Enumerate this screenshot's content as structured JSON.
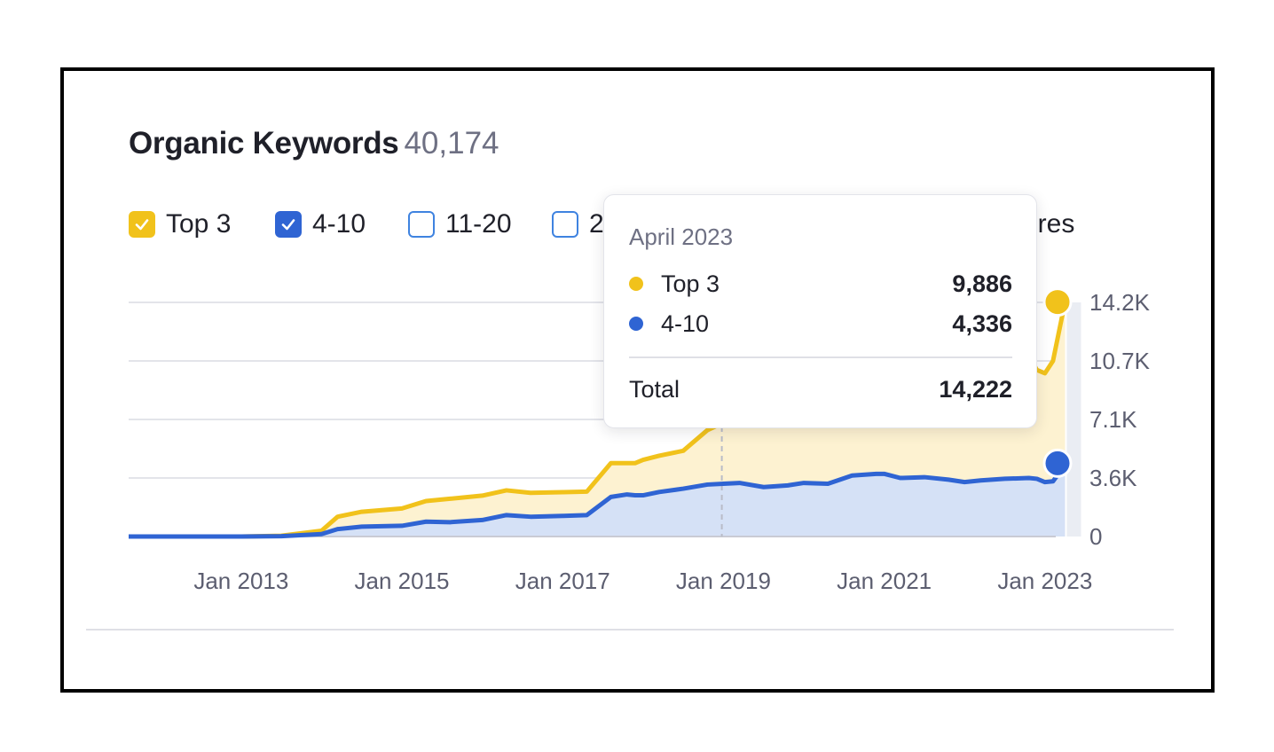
{
  "header": {
    "title": "Organic Keywords",
    "count": "40,174"
  },
  "legend": {
    "items": [
      {
        "label": "Top 3",
        "checked": true,
        "color": "#f1c21b"
      },
      {
        "label": "4-10",
        "checked": true,
        "color": "#2f64d3"
      },
      {
        "label": "11-20",
        "checked": false,
        "color": "#3f83e0"
      },
      {
        "label": "2",
        "checked": false,
        "color": "#3f83e0"
      }
    ],
    "overflow_text": "ures"
  },
  "tooltip": {
    "date": "April 2023",
    "rows": [
      {
        "label": "Top 3",
        "value": "9,886",
        "color": "#f1c21b"
      },
      {
        "label": "4-10",
        "value": "4,336",
        "color": "#2f64d3"
      }
    ],
    "total_label": "Total",
    "total_value": "14,222"
  },
  "chart_data": {
    "type": "area",
    "stacked": true,
    "x_tick_labels": [
      "Jan 2013",
      "Jan 2015",
      "Jan 2017",
      "Jan 2019",
      "Jan 2021",
      "Jan 2023"
    ],
    "y_tick_labels": [
      "0",
      "3.6K",
      "7.1K",
      "10.7K",
      "14.2K"
    ],
    "ylim": [
      0,
      14200
    ],
    "xlim": [
      2011.6,
      2023.3
    ],
    "grid": true,
    "legend_position": "top-left",
    "hover_x": 2018.98,
    "x": [
      2011.6,
      2012.5,
      2013.0,
      2013.5,
      2014.0,
      2014.2,
      2014.5,
      2015.0,
      2015.3,
      2015.6,
      2016.0,
      2016.3,
      2016.6,
      2017.0,
      2017.3,
      2017.6,
      2017.8,
      2017.9,
      2018.0,
      2018.2,
      2018.5,
      2018.8,
      2019.0,
      2019.2,
      2019.5,
      2019.8,
      2020.0,
      2020.3,
      2020.6,
      2020.9,
      2021.0,
      2021.2,
      2021.5,
      2021.8,
      2022.0,
      2022.2,
      2022.5,
      2022.8,
      2022.9,
      2023.0,
      2023.1,
      2023.25
    ],
    "series": [
      {
        "name": "4-10",
        "color": "#2f64d3",
        "values": [
          0,
          0,
          0,
          20,
          150,
          450,
          600,
          650,
          900,
          870,
          1000,
          1300,
          1200,
          1250,
          1300,
          2400,
          2550,
          2500,
          2500,
          2700,
          2900,
          3150,
          3200,
          3250,
          3000,
          3100,
          3250,
          3200,
          3700,
          3800,
          3800,
          3550,
          3600,
          3450,
          3300,
          3400,
          3500,
          3550,
          3500,
          3300,
          3350,
          4336
        ]
      },
      {
        "name": "Top 3",
        "color": "#f1c21b",
        "values": [
          0,
          0,
          0,
          30,
          200,
          750,
          900,
          1050,
          1250,
          1420,
          1480,
          1500,
          1450,
          1440,
          1420,
          2050,
          1900,
          1950,
          2150,
          2200,
          2300,
          3300,
          3700,
          4100,
          4400,
          4800,
          5100,
          5300,
          5500,
          5600,
          5700,
          5800,
          5900,
          6100,
          6300,
          6500,
          6900,
          7400,
          6600,
          6600,
          7300,
          9886
        ]
      }
    ],
    "hover_marker_values": {
      "Top 3": 14222,
      "4-10": 4336
    }
  }
}
